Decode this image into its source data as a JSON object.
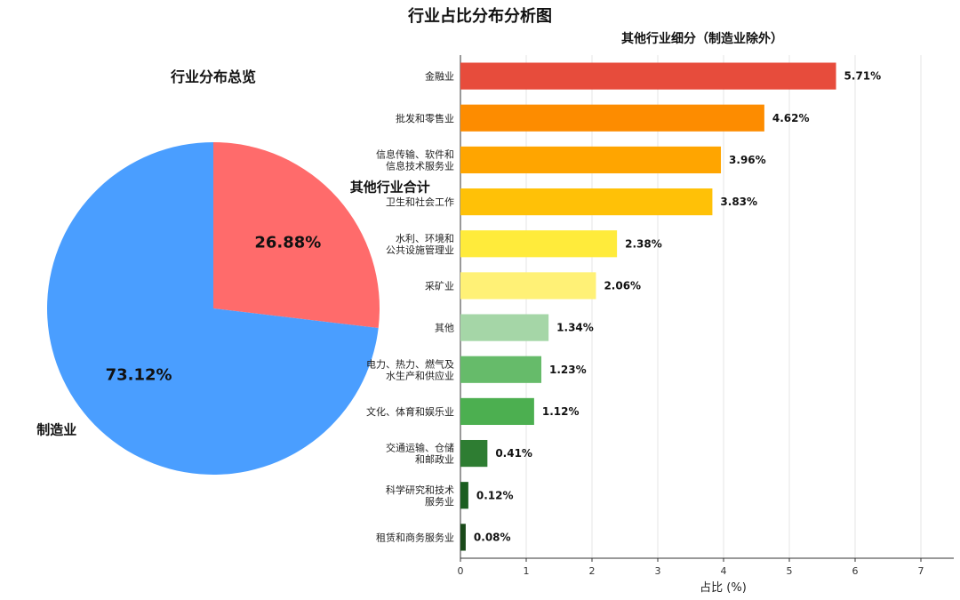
{
  "title": "行业占比分布分析图",
  "colors": {
    "manufacturing": "#4a9eff",
    "others": "#ff6b6b",
    "bars": [
      "#e74c3c",
      "#fd8c00",
      "#ffa500",
      "#ffc107",
      "#ffeb3b",
      "#fff176",
      "#a5d6a7",
      "#66bb6a",
      "#4caf50",
      "#2e7d32",
      "#1b5e20",
      "#1a4a1a"
    ]
  },
  "chart_data": [
    {
      "type": "pie",
      "title": "行业分布总览",
      "slices": [
        {
          "label": "其他行业合计",
          "value": 26.88,
          "pct_label": "26.88%"
        },
        {
          "label": "制造业",
          "value": 73.12,
          "pct_label": "73.12%"
        }
      ]
    },
    {
      "type": "bar",
      "orientation": "horizontal",
      "title": "其他行业细分（制造业除外）",
      "xlabel": "占比 (%)",
      "xlim": [
        0,
        7.5
      ],
      "xticks": [
        "0",
        "1",
        "2",
        "3",
        "4",
        "5",
        "6",
        "7"
      ],
      "grid": true,
      "categories": [
        [
          "金融业"
        ],
        [
          "批发和零售业"
        ],
        [
          "信息传输、软件和",
          "信息技术服务业"
        ],
        [
          "卫生和社会工作"
        ],
        [
          "水利、环境和",
          "公共设施管理业"
        ],
        [
          "采矿业"
        ],
        [
          "其他"
        ],
        [
          "电力、热力、燃气及",
          "水生产和供应业"
        ],
        [
          "文化、体育和娱乐业"
        ],
        [
          "交通运输、仓储",
          "和邮政业"
        ],
        [
          "科学研究和技术",
          "服务业"
        ],
        [
          "租赁和商务服务业"
        ]
      ],
      "values": [
        5.71,
        4.62,
        3.96,
        3.83,
        2.38,
        2.06,
        1.34,
        1.23,
        1.12,
        0.41,
        0.12,
        0.08
      ],
      "value_labels": [
        "5.71%",
        "4.62%",
        "3.96%",
        "3.83%",
        "2.38%",
        "2.06%",
        "1.34%",
        "1.23%",
        "1.12%",
        "0.41%",
        "0.12%",
        "0.08%"
      ]
    }
  ]
}
